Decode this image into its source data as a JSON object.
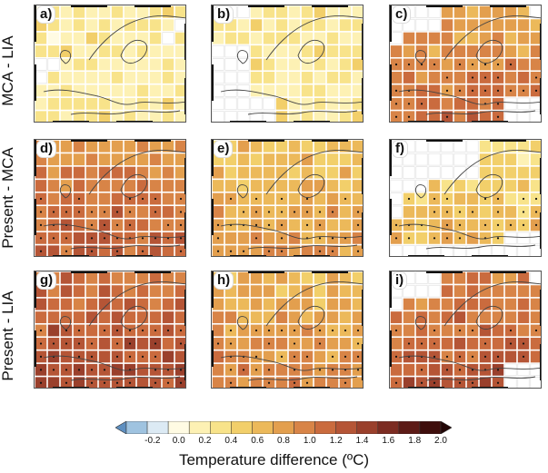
{
  "row_labels": [
    "MCA - LIA",
    "Present - MCA",
    "Present - LIA"
  ],
  "panels": [
    {
      "label": "a)",
      "level": 0.25,
      "blank": "a",
      "dots": false
    },
    {
      "label": "b)",
      "level": 0.25,
      "blank": "b",
      "dots": false
    },
    {
      "label": "c)",
      "level": 0.75,
      "blank": "c",
      "dots": true
    },
    {
      "label": "d)",
      "level": 0.85,
      "blank": "none",
      "dots": true
    },
    {
      "label": "e)",
      "level": 0.55,
      "blank": "none",
      "dots": true
    },
    {
      "label": "f)",
      "level": 0.35,
      "blank": "f",
      "dots": true
    },
    {
      "label": "g)",
      "level": 1.05,
      "blank": "none",
      "dots": true
    },
    {
      "label": "h)",
      "level": 0.65,
      "blank": "none",
      "dots": true
    },
    {
      "label": "i)",
      "level": 0.95,
      "blank": "c",
      "dots": true
    }
  ],
  "colorbar": {
    "title": "Temperature difference (ºC)",
    "tick_labels": [
      "-0.2",
      "0.0",
      "0.2",
      "0.4",
      "0.6",
      "0.8",
      "1.0",
      "1.2",
      "1.4",
      "1.6",
      "1.8",
      "2.0"
    ],
    "bins": [
      "#5e8fc0",
      "#9fc3e0",
      "#dceaf4",
      "#fffbe3",
      "#fdf1b4",
      "#f8e38a",
      "#f2cf6a",
      "#ecb95a",
      "#e39f4e",
      "#d88447",
      "#ca6b3e",
      "#b55536",
      "#9a402c",
      "#7c2c22",
      "#5d1b17",
      "#3f0e0c",
      "#220606"
    ],
    "range": [
      -0.4,
      2.0
    ]
  }
}
